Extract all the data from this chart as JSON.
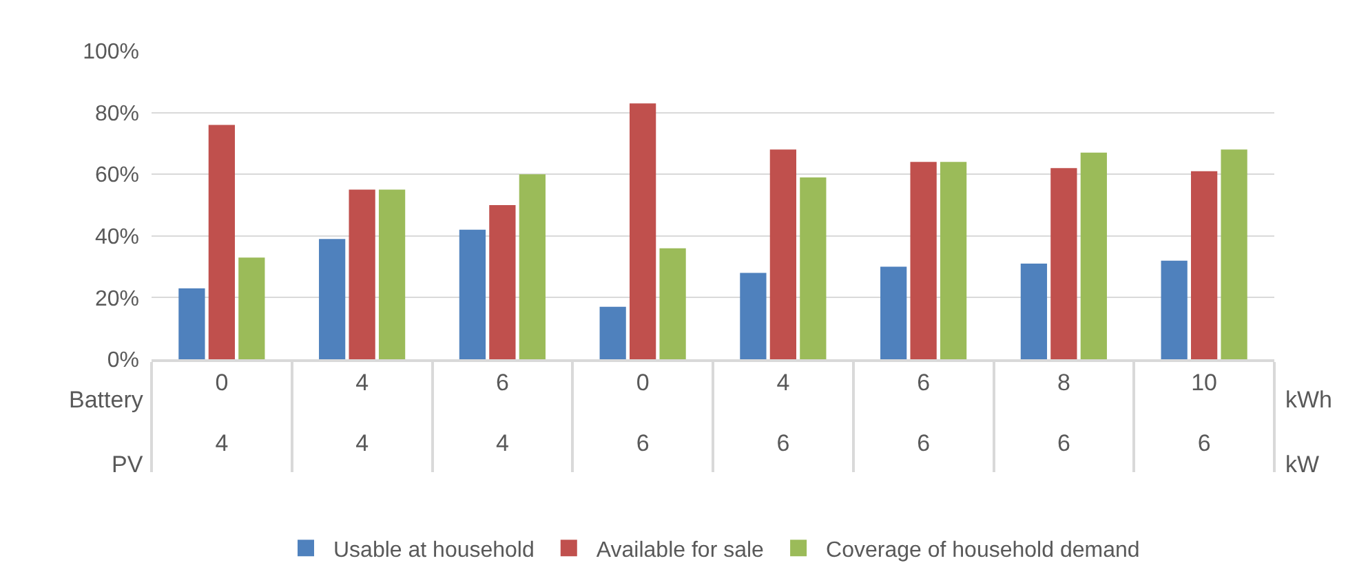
{
  "chart_data": {
    "type": "bar",
    "categories": [
      "0\n4",
      "4\n4",
      "6\n4",
      "0\n6",
      "4\n6",
      "6\n6",
      "8\n6",
      "10\n6"
    ],
    "series": [
      {
        "name": "Usable at household",
        "color": "#4f81bd",
        "values": [
          23,
          39,
          42,
          17,
          28,
          30,
          31,
          32
        ]
      },
      {
        "name": "Available for sale",
        "color": "#c0504d",
        "values": [
          76,
          55,
          50,
          83,
          68,
          64,
          62,
          61
        ]
      },
      {
        "name": "Coverage of household demand",
        "color": "#9bbb59",
        "values": [
          33,
          55,
          60,
          36,
          59,
          64,
          67,
          68
        ]
      }
    ],
    "ylim": [
      0,
      100
    ],
    "yticks": [
      {
        "value": 0,
        "label": "0%"
      },
      {
        "value": 20,
        "label": "20%"
      },
      {
        "value": 40,
        "label": "40%"
      },
      {
        "value": 60,
        "label": "60%"
      },
      {
        "value": 80,
        "label": "80%"
      },
      {
        "value": 100,
        "label": "100%"
      }
    ],
    "annotations": [
      "Battery",
      "PV",
      "kWh",
      "kW"
    ],
    "grid": "y",
    "legend": "bottom"
  }
}
